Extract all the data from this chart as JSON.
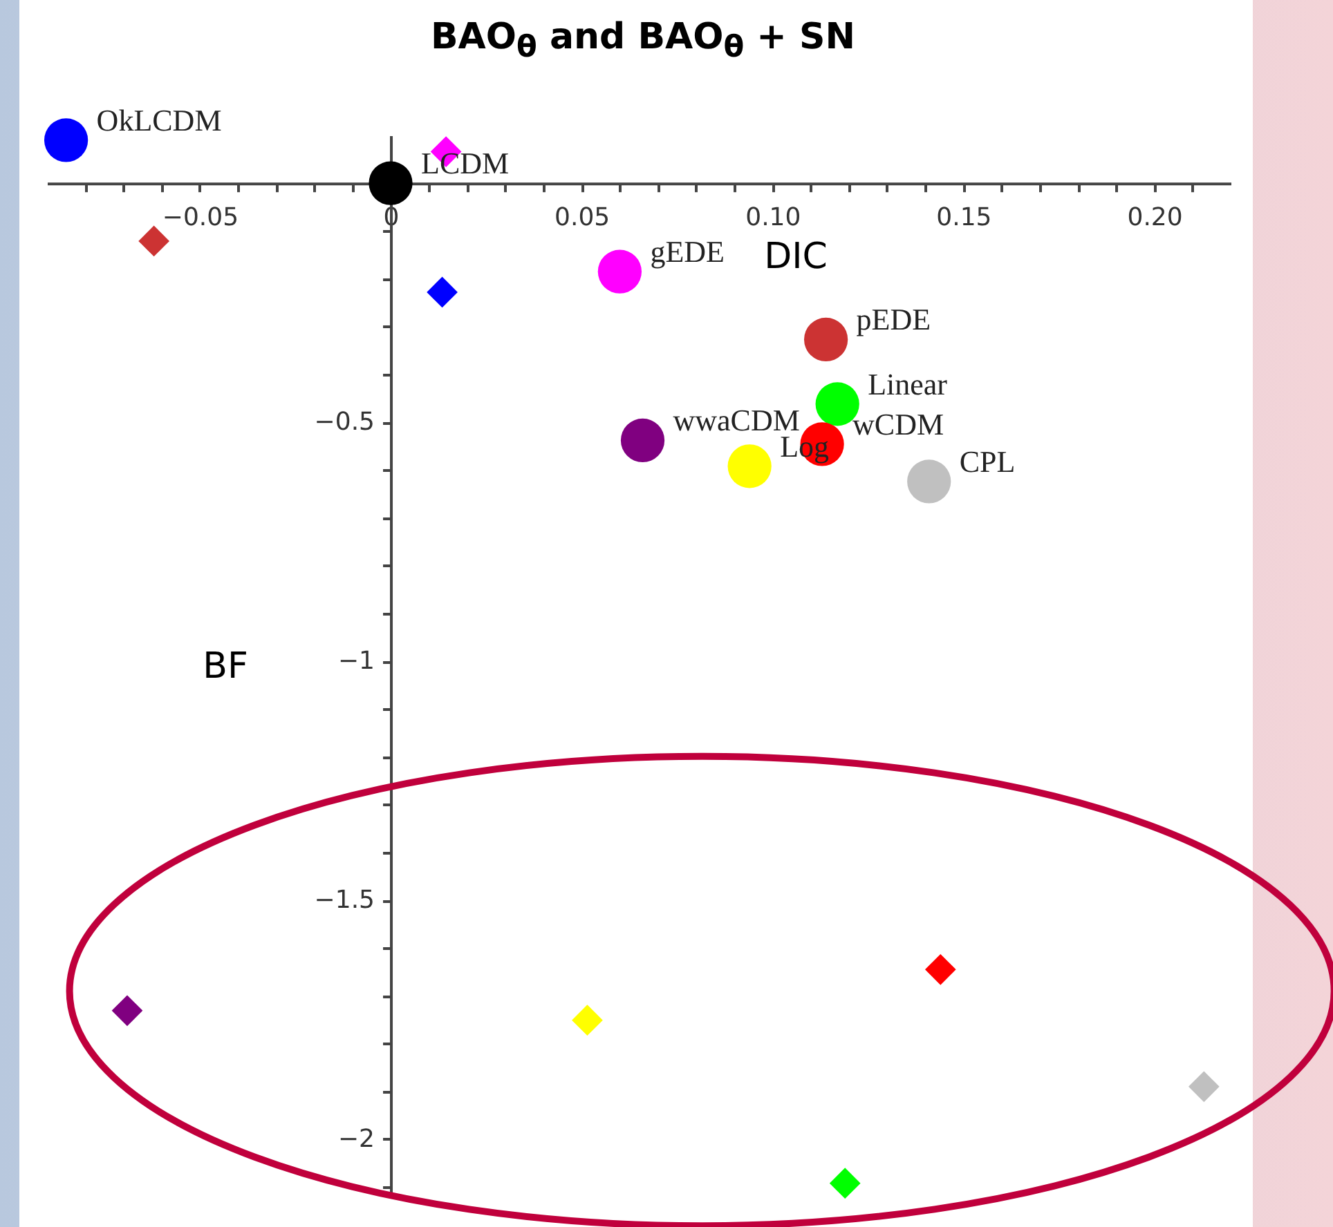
{
  "chart_data": {
    "type": "scatter",
    "title": "BAO$_{θ}$ and BAO$_{θ}$ + SN",
    "xlabel": "DIC",
    "ylabel": "BF",
    "xlim": [
      -0.09,
      0.22
    ],
    "ylim": [
      -2.12,
      0.1
    ],
    "xticks": [
      {
        "value": -0.08,
        "label": null
      },
      {
        "value": -0.07,
        "label": null
      },
      {
        "value": -0.06,
        "label": null
      },
      -0.05,
      {
        "value": -0.04,
        "label": null
      },
      {
        "value": -0.03,
        "label": null
      },
      {
        "value": -0.02,
        "label": null
      },
      {
        "value": -0.01,
        "label": null
      },
      0,
      {
        "value": 0.01,
        "label": null
      },
      {
        "value": 0.02,
        "label": null
      },
      {
        "value": 0.03,
        "label": null
      },
      {
        "value": 0.04,
        "label": null
      },
      0.05,
      {
        "value": 0.06,
        "label": null
      },
      {
        "value": 0.07,
        "label": null
      },
      {
        "value": 0.08,
        "label": null
      },
      {
        "value": 0.09,
        "label": null
      },
      {
        "value": 0.1,
        "label": "0.10"
      },
      {
        "value": 0.11,
        "label": null
      },
      {
        "value": 0.12,
        "label": null
      },
      {
        "value": 0.13,
        "label": null
      },
      {
        "value": 0.14,
        "label": null
      },
      0.15,
      {
        "value": 0.16,
        "label": null
      },
      {
        "value": 0.17,
        "label": null
      },
      {
        "value": 0.18,
        "label": null
      },
      {
        "value": 0.19,
        "label": null
      },
      {
        "value": 0.2,
        "label": "0.20"
      },
      {
        "value": 0.21,
        "label": null
      }
    ],
    "yticks": [
      {
        "value": -0.1,
        "label": null
      },
      {
        "value": -0.2,
        "label": null
      },
      {
        "value": -0.3,
        "label": null
      },
      {
        "value": -0.4,
        "label": null
      },
      -0.5,
      {
        "value": -0.6,
        "label": null
      },
      {
        "value": -0.7,
        "label": null
      },
      {
        "value": -0.8,
        "label": null
      },
      {
        "value": -0.9,
        "label": null
      },
      -1,
      {
        "value": -1.1,
        "label": null
      },
      {
        "value": -1.2,
        "label": null
      },
      {
        "value": -1.3,
        "label": null
      },
      {
        "value": -1.4,
        "label": null
      },
      -1.5,
      {
        "value": -1.6,
        "label": null
      },
      {
        "value": -1.7,
        "label": null
      },
      {
        "value": -1.8,
        "label": null
      },
      {
        "value": -1.9,
        "label": null
      },
      -2,
      {
        "value": -2.1,
        "label": null
      }
    ],
    "grid": false,
    "series": [
      {
        "marker": "circle",
        "x": [
          -0.085,
          0,
          0.06,
          0.114,
          0.117,
          0.066,
          0.113,
          0.094,
          0.141
        ],
        "values": [
          0.09,
          0,
          -0.185,
          -0.327,
          -0.462,
          -0.538,
          -0.546,
          -0.592,
          -0.624
        ],
        "colors": [
          "#0000ff",
          "#000000",
          "#ff00ff",
          "#cc3333",
          "#00ff00",
          "#800080",
          "#ff0000",
          "#ffff00",
          "#c0c0c0"
        ]
      },
      {
        "marker": "diamond",
        "x": [
          0.0145,
          -0.062,
          0.0135,
          -0.069,
          0.0515,
          0.144,
          0.213,
          0.119
        ],
        "values": [
          0.066,
          -0.121,
          -0.228,
          -1.731,
          -1.751,
          -1.645,
          -1.89,
          -2.092
        ],
        "colors": [
          "#ff00ff",
          "#cc3333",
          "#0000ff",
          "#800080",
          "#ffff00",
          "#ff0000",
          "#c0c0c0",
          "#00ff00"
        ]
      }
    ],
    "annotations": [
      {
        "text": "OkLCDM",
        "x": -0.085,
        "y": 0.09
      },
      {
        "text": "LCDM",
        "x": 0,
        "y": 0
      },
      {
        "text": "gEDE",
        "x": 0.06,
        "y": -0.185
      },
      {
        "text": "pEDE",
        "x": 0.114,
        "y": -0.327
      },
      {
        "text": "Linear",
        "x": 0.117,
        "y": -0.462
      },
      {
        "text": "wwaCDM",
        "x": 0.066,
        "y": -0.538
      },
      {
        "text": "wCDM",
        "x": 0.113,
        "y": -0.546
      },
      {
        "text": "Log",
        "x": 0.094,
        "y": -0.592
      },
      {
        "text": "CPL",
        "x": 0.141,
        "y": -0.624
      }
    ]
  }
}
